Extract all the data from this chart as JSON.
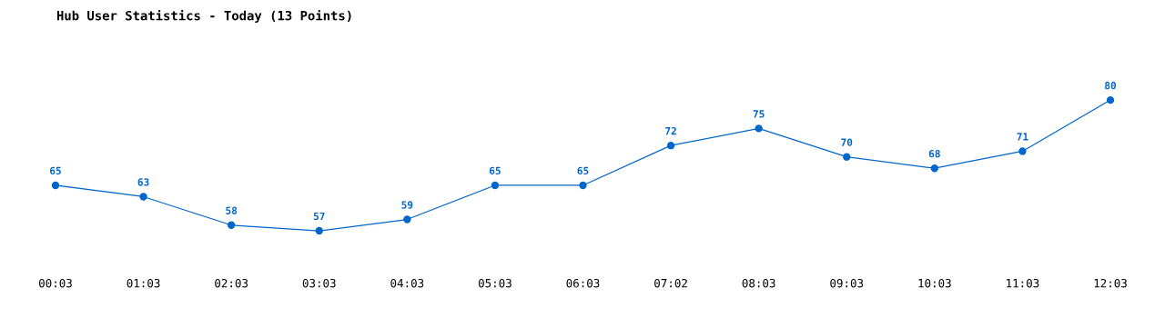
{
  "chart_data": {
    "type": "line",
    "title": "Hub User Statistics - Today (13 Points)",
    "categories": [
      "00:03",
      "01:03",
      "02:03",
      "03:03",
      "04:03",
      "05:03",
      "06:03",
      "07:02",
      "08:03",
      "09:03",
      "10:03",
      "11:03",
      "12:03"
    ],
    "series": [
      {
        "color": "#0066cc",
        "values": [
          65,
          63,
          58,
          57,
          59,
          65,
          65,
          72,
          75,
          70,
          68,
          71,
          80
        ]
      }
    ],
    "data_labels": true,
    "marker": "circle",
    "line_style": "solid",
    "grid": false,
    "tick_labels": "x"
  }
}
